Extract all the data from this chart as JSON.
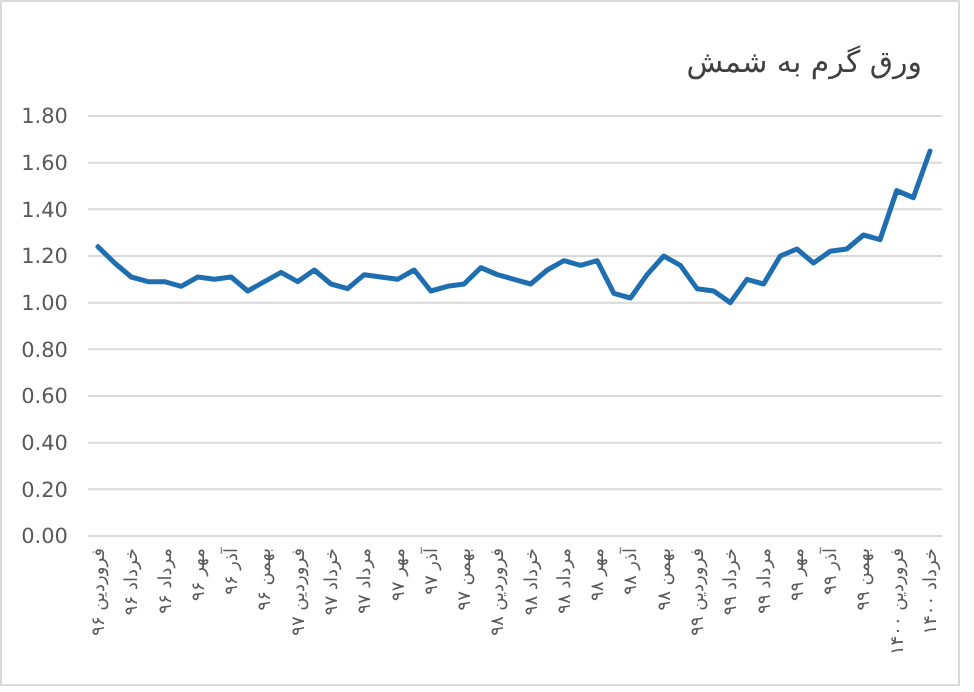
{
  "chart_data": {
    "type": "line",
    "title": "ورق گرم به شمش",
    "categories": [
      "فروردین ۹۶",
      null,
      "خرداد ۹۶",
      null,
      "مرداد ۹۶",
      null,
      "مهر ۹۶",
      null,
      "آذر ۹۶",
      null,
      "بهمن ۹۶",
      null,
      "فروردین ۹۷",
      null,
      "خرداد ۹۷",
      null,
      "مرداد ۹۷",
      null,
      "مهر ۹۷",
      null,
      "آذر ۹۷",
      null,
      "بهمن ۹۷",
      null,
      "فروردین ۹۸",
      null,
      "خرداد ۹۸",
      null,
      "مرداد ۹۸",
      null,
      "مهر ۹۸",
      null,
      "آذر ۹۸",
      null,
      "بهمن ۹۸",
      null,
      "فروردین ۹۹",
      null,
      "خرداد ۹۹",
      null,
      "مرداد ۹۹",
      null,
      "مهر ۹۹",
      null,
      "آذر ۹۹",
      null,
      "بهمن ۹۹",
      null,
      "فروردین ۱۴۰۰",
      null,
      "خرداد ۱۴۰۰"
    ],
    "series": [
      {
        "color": "#1f6eb0",
        "values": [
          1.24,
          1.17,
          1.11,
          1.09,
          1.09,
          1.07,
          1.11,
          1.1,
          1.11,
          1.05,
          1.09,
          1.13,
          1.09,
          1.14,
          1.08,
          1.06,
          1.12,
          1.11,
          1.1,
          1.14,
          1.05,
          1.07,
          1.08,
          1.15,
          1.12,
          1.1,
          1.08,
          1.14,
          1.18,
          1.16,
          1.18,
          1.04,
          1.02,
          1.12,
          1.2,
          1.16,
          1.06,
          1.05,
          1.0,
          1.1,
          1.08,
          1.2,
          1.23,
          1.17,
          1.22,
          1.23,
          1.29,
          1.27,
          1.48,
          1.45,
          1.65
        ]
      }
    ],
    "ylim": [
      0,
      1.8
    ],
    "yticks": [
      {
        "value": 0,
        "label": "0.00"
      },
      {
        "value": 0.2,
        "label": "0.20"
      },
      {
        "value": 0.4,
        "label": "0.40"
      },
      {
        "value": 0.6,
        "label": "0.60"
      },
      {
        "value": 0.8,
        "label": "0.80"
      },
      {
        "value": 1,
        "label": "1.00"
      },
      {
        "value": 1.2,
        "label": "1.20"
      },
      {
        "value": 1.4,
        "label": "1.40"
      },
      {
        "value": 1.6,
        "label": "1.60"
      },
      {
        "value": 1.8,
        "label": "1.80"
      }
    ],
    "grid": "y",
    "marker": "none",
    "line_style": "solid"
  }
}
